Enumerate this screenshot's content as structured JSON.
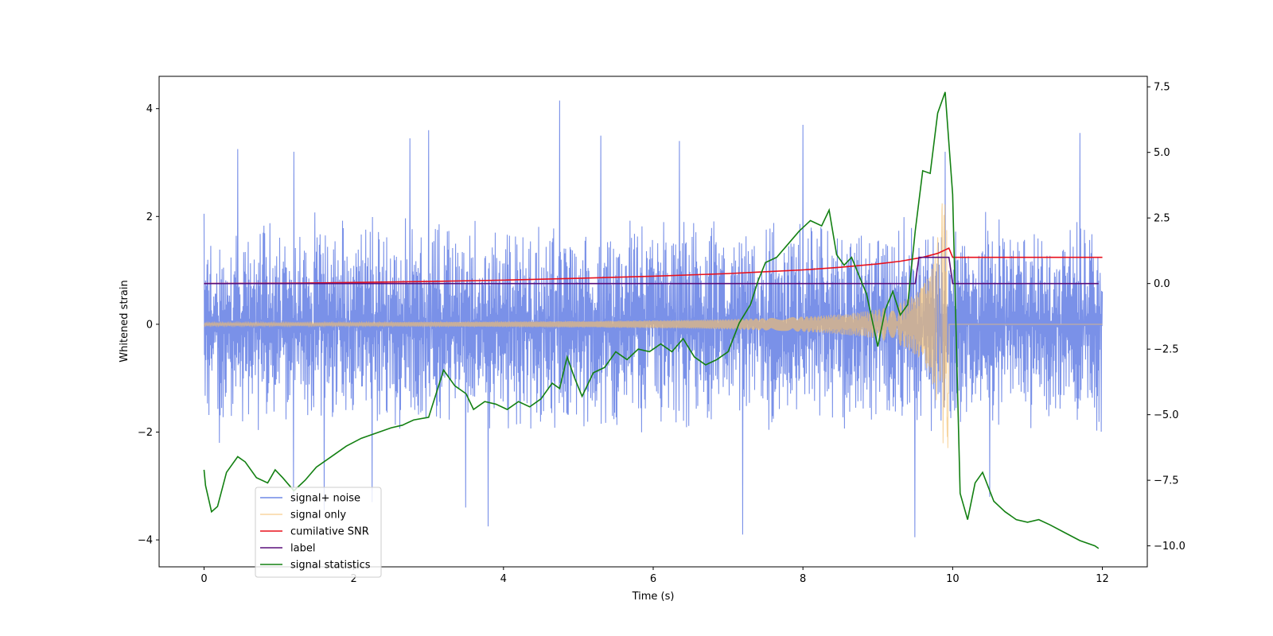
{
  "chart_data": {
    "type": "line",
    "xlabel": "Time (s)",
    "ylabel": "Whitened strain",
    "y2label": "",
    "xlim": [
      -0.6,
      12.6
    ],
    "ylim": [
      -4.5,
      4.6
    ],
    "y2lim": [
      -10.8,
      7.9
    ],
    "x_ticks": [
      0,
      2,
      4,
      6,
      8,
      10,
      12
    ],
    "y_ticks": [
      -4,
      -2,
      0,
      2,
      4
    ],
    "y2_ticks": [
      -10.0,
      -7.5,
      -5.0,
      -2.5,
      0.0,
      2.5,
      5.0,
      7.5
    ],
    "x_tick_labels": [
      "0",
      "2",
      "4",
      "6",
      "8",
      "10",
      "12"
    ],
    "y_tick_labels": [
      "−4",
      "−2",
      "0",
      "2",
      "4"
    ],
    "y2_tick_labels": [
      "−10.0",
      "−7.5",
      "−5.0",
      "−2.5",
      "0.0",
      "2.5",
      "5.0",
      "7.5"
    ],
    "legend_position": "lower-left",
    "series": [
      {
        "name": "signal+ noise",
        "axis": "left",
        "color": "#6f88e6",
        "kind": "noise-envelope",
        "x_range": [
          0,
          12
        ],
        "upper_typical": 1.8,
        "lower_typical": -1.8,
        "peaks_upper": [
          [
            0.0,
            2.05
          ],
          [
            0.45,
            3.25
          ],
          [
            1.2,
            3.2
          ],
          [
            2.75,
            3.45
          ],
          [
            3.0,
            3.6
          ],
          [
            4.75,
            4.15
          ],
          [
            5.3,
            3.5
          ],
          [
            6.35,
            3.4
          ],
          [
            8.0,
            3.7
          ],
          [
            9.9,
            3.2
          ],
          [
            11.7,
            3.55
          ]
        ],
        "peaks_lower": [
          [
            0.2,
            -2.2
          ],
          [
            1.2,
            -3.3
          ],
          [
            1.6,
            -3.45
          ],
          [
            2.25,
            -3.3
          ],
          [
            3.5,
            -3.4
          ],
          [
            3.8,
            -3.75
          ],
          [
            7.2,
            -3.9
          ],
          [
            9.5,
            -3.95
          ],
          [
            10.5,
            -3.2
          ]
        ]
      },
      {
        "name": "signal only",
        "axis": "left",
        "color": "#f5c06f",
        "kind": "chirp",
        "x_range": [
          0,
          12
        ],
        "merger_time": 9.95,
        "amplitude_start": 0.03,
        "amplitude_peak": 2.3
      },
      {
        "name": "cumilative SNR",
        "axis": "right",
        "color": "#e8101c",
        "x": [
          0,
          1,
          2,
          3,
          4,
          5,
          6,
          7,
          7.5,
          8,
          8.5,
          9,
          9.3,
          9.6,
          9.8,
          9.95,
          10.0,
          12.0
        ],
        "y": [
          0.0,
          0.01,
          0.04,
          0.08,
          0.13,
          0.2,
          0.28,
          0.38,
          0.45,
          0.52,
          0.62,
          0.75,
          0.85,
          1.0,
          1.15,
          1.35,
          1.0,
          1.0
        ]
      },
      {
        "name": "label",
        "axis": "right",
        "color": "#5a0f7a",
        "x": [
          0,
          9.5,
          9.55,
          9.95,
          10.0,
          11.95
        ],
        "y": [
          0,
          0,
          1,
          1,
          0,
          0
        ]
      },
      {
        "name": "signal statistics",
        "axis": "right",
        "color": "#138012",
        "x": [
          0.0,
          0.02,
          0.1,
          0.18,
          0.3,
          0.45,
          0.55,
          0.7,
          0.85,
          0.95,
          1.05,
          1.2,
          1.35,
          1.5,
          1.7,
          1.9,
          2.1,
          2.3,
          2.5,
          2.65,
          2.8,
          3.0,
          3.1,
          3.2,
          3.35,
          3.5,
          3.6,
          3.75,
          3.9,
          4.05,
          4.2,
          4.35,
          4.5,
          4.65,
          4.75,
          4.85,
          4.95,
          5.05,
          5.2,
          5.35,
          5.5,
          5.65,
          5.8,
          5.95,
          6.1,
          6.25,
          6.4,
          6.55,
          6.7,
          6.85,
          7.0,
          7.15,
          7.3,
          7.4,
          7.5,
          7.65,
          7.8,
          7.95,
          8.1,
          8.25,
          8.35,
          8.45,
          8.55,
          8.65,
          8.75,
          8.85,
          9.0,
          9.1,
          9.2,
          9.3,
          9.4,
          9.5,
          9.6,
          9.7,
          9.8,
          9.9,
          10.0,
          10.1,
          10.2,
          10.3,
          10.4,
          10.55,
          10.7,
          10.85,
          11.0,
          11.15,
          11.3,
          11.5,
          11.7,
          11.9,
          11.95
        ],
        "y": [
          -7.1,
          -7.7,
          -8.7,
          -8.5,
          -7.2,
          -6.6,
          -6.8,
          -7.4,
          -7.6,
          -7.1,
          -7.4,
          -7.9,
          -7.5,
          -7.0,
          -6.6,
          -6.2,
          -5.9,
          -5.7,
          -5.5,
          -5.4,
          -5.2,
          -5.1,
          -4.2,
          -3.3,
          -3.9,
          -4.2,
          -4.8,
          -4.5,
          -4.6,
          -4.8,
          -4.5,
          -4.7,
          -4.4,
          -3.8,
          -4.0,
          -2.8,
          -3.6,
          -4.3,
          -3.4,
          -3.2,
          -2.6,
          -2.9,
          -2.5,
          -2.6,
          -2.3,
          -2.6,
          -2.1,
          -2.8,
          -3.1,
          -2.9,
          -2.6,
          -1.5,
          -0.8,
          0.1,
          0.8,
          1.0,
          1.5,
          2.0,
          2.4,
          2.2,
          2.8,
          1.1,
          0.7,
          1.0,
          0.3,
          -0.4,
          -2.4,
          -1.0,
          -0.3,
          -1.2,
          -0.8,
          2.0,
          4.3,
          4.2,
          6.5,
          7.3,
          3.4,
          -8.0,
          -9.0,
          -7.6,
          -7.2,
          -8.3,
          -8.7,
          -9.0,
          -9.1,
          -9.0,
          -9.2,
          -9.5,
          -9.8,
          -10.0,
          -10.1
        ]
      }
    ]
  }
}
